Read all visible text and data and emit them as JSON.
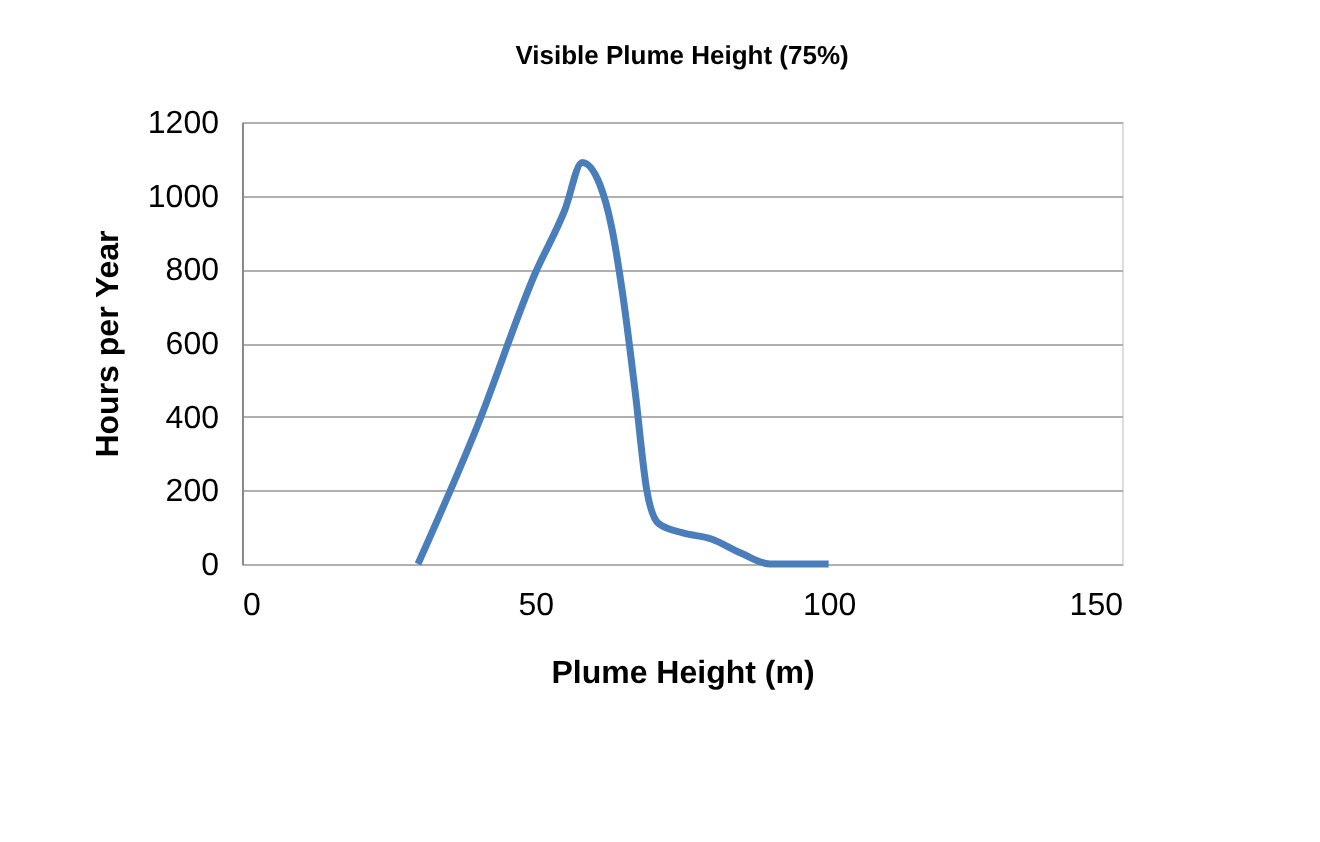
{
  "chart_data": {
    "type": "line",
    "title": "Visible Plume Height (75%)",
    "xlabel": "Plume Height (m)",
    "ylabel": "Hours per Year",
    "x": [
      30,
      40,
      50,
      55,
      58,
      61,
      63,
      65,
      67,
      69,
      71,
      75,
      80,
      85,
      90,
      100
    ],
    "series": [
      {
        "color": "#4a7ebb",
        "values": [
          0,
          370,
          790,
          960,
          1090,
          1030,
          915,
          720,
          470,
          200,
          110,
          85,
          68,
          30,
          0,
          0
        ]
      }
    ],
    "xlim": [
      0,
      150
    ],
    "xticks": [
      0,
      50,
      100,
      150
    ],
    "ylim": [
      0,
      1200
    ],
    "yticks": [
      0,
      200,
      400,
      600,
      800,
      1000,
      1200
    ],
    "grid": "y",
    "marker": "none",
    "line_style": "solid"
  }
}
